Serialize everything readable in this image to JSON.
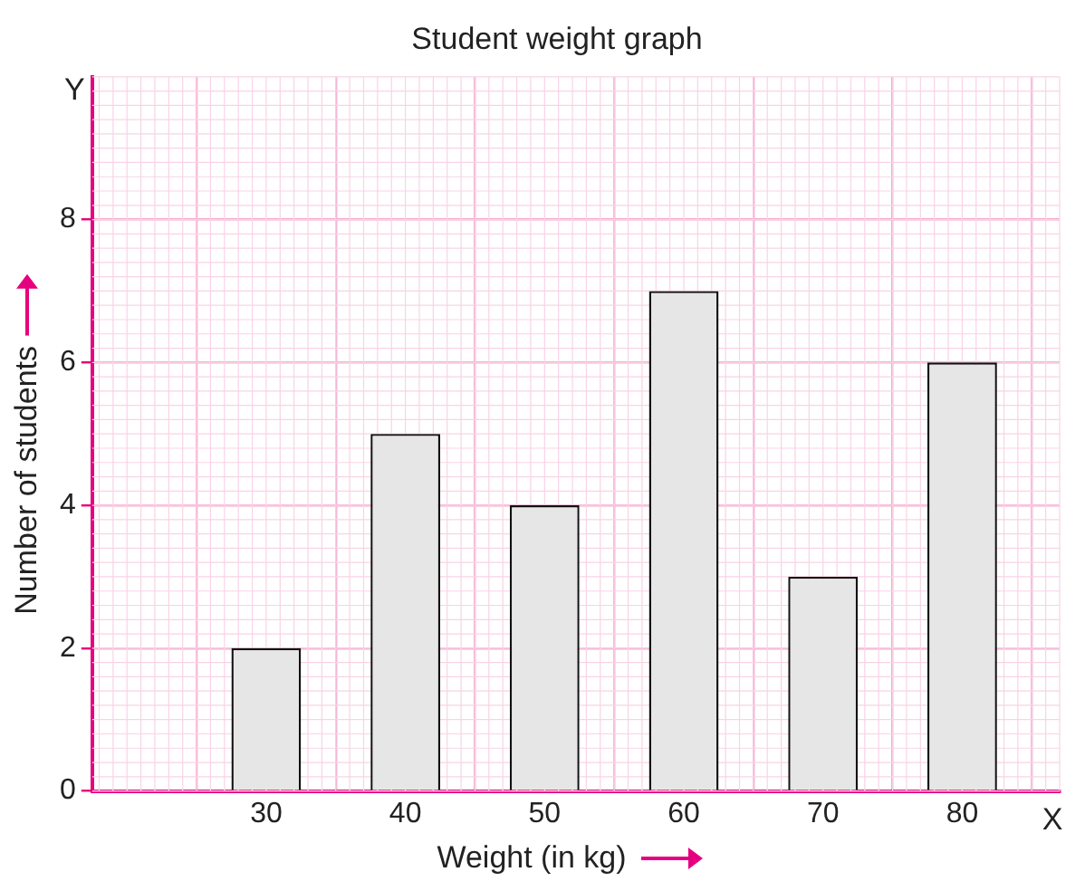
{
  "chart_data": {
    "type": "bar",
    "title": "Student weight graph",
    "xlabel": "Weight (in kg)",
    "ylabel": "Number of students",
    "x": [
      30,
      40,
      50,
      60,
      70,
      80
    ],
    "values": [
      2,
      5,
      4,
      7,
      3,
      6
    ],
    "color": "#e6e6e6",
    "xlim": [
      17.5,
      87
    ],
    "xticks": [
      30,
      40,
      50,
      60,
      70,
      80
    ],
    "ylim": [
      0,
      10
    ],
    "yticks": [
      0,
      2,
      4,
      6,
      8
    ],
    "grid": true,
    "legend": false,
    "annotations": [
      "Y",
      "X"
    ]
  }
}
